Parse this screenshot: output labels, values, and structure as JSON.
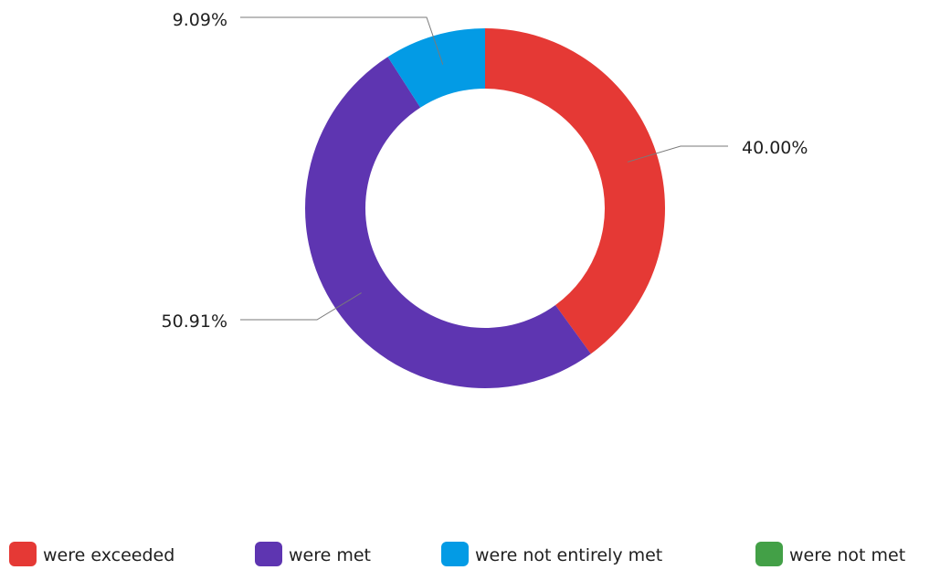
{
  "chart_data": {
    "type": "pie",
    "donut": true,
    "title": "",
    "legend_position": "bottom",
    "series": [
      {
        "name": "were exceeded",
        "value": 40.0,
        "label": "40.00%",
        "color": "#e53935"
      },
      {
        "name": "were met",
        "value": 50.91,
        "label": "50.91%",
        "color": "#5e35b1"
      },
      {
        "name": "were not entirely met",
        "value": 9.09,
        "label": "9.09%",
        "color": "#039be5"
      },
      {
        "name": "were not met",
        "value": 0,
        "label": "",
        "color": "#43a047"
      }
    ]
  }
}
